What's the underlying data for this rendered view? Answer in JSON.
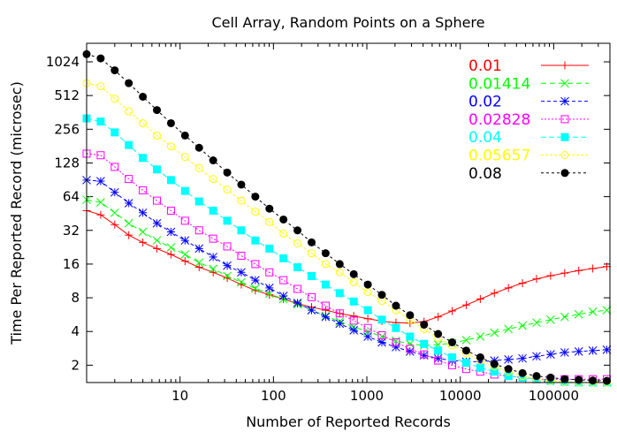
{
  "chart_data": {
    "type": "line",
    "title": "Cell Array, Random Points on a Sphere",
    "xlabel": "Number of Reported Records",
    "ylabel": "Time Per Reported Record (microsec)",
    "xscale": "log10",
    "yscale": "log2",
    "xlim": [
      1,
      400000
    ],
    "ylim": [
      1.4,
      1500
    ],
    "x_ticks": [
      10,
      100,
      1000,
      10000,
      100000
    ],
    "x_tick_labels": [
      "10",
      "100",
      "1000",
      "10000",
      "100000"
    ],
    "y_ticks": [
      2,
      4,
      8,
      16,
      32,
      64,
      128,
      256,
      512,
      1024
    ],
    "y_tick_labels": [
      "2",
      "4",
      "8",
      "16",
      "32",
      "64",
      "128",
      "256",
      "512",
      "1024"
    ],
    "grid": false,
    "legend_position": "top-right",
    "x": [
      1,
      1.414,
      2,
      2.828,
      4,
      5.657,
      8,
      11.31,
      16,
      22.63,
      32,
      45.25,
      64,
      90.51,
      128,
      181,
      256,
      362,
      512,
      724,
      1024,
      1448,
      2048,
      2896,
      4096,
      5793,
      8192,
      11585,
      16384,
      23170,
      32768,
      46341,
      65536,
      92682,
      131072,
      185364,
      262144,
      370728
    ],
    "series": [
      {
        "name": "0.01",
        "color": "#ff0000",
        "marker": "plus",
        "values": [
          48,
          44,
          36,
          29,
          25,
          22,
          19.5,
          17,
          15,
          13.5,
          12,
          10.5,
          9.3,
          8.5,
          7.8,
          7.1,
          6.6,
          6.2,
          5.8,
          5.5,
          5.2,
          4.95,
          4.8,
          4.75,
          4.9,
          5.4,
          6.1,
          6.9,
          7.8,
          8.8,
          9.8,
          10.8,
          11.8,
          12.6,
          13.3,
          14,
          14.6,
          15.2
        ]
      },
      {
        "name": "0.01414",
        "color": "#00ff00",
        "marker": "cross",
        "values": [
          60,
          57,
          46,
          37,
          31,
          26,
          22.5,
          19.5,
          16.5,
          14.5,
          12.5,
          11,
          9.7,
          8.7,
          7.8,
          7,
          6.2,
          5.5,
          4.9,
          4.4,
          4,
          3.6,
          3.3,
          3.1,
          3.0,
          3.05,
          3.15,
          3.35,
          3.6,
          3.9,
          4.2,
          4.5,
          4.8,
          5.1,
          5.4,
          5.7,
          6.0,
          6.2
        ]
      },
      {
        "name": "0.02",
        "color": "#0000ff",
        "marker": "star",
        "values": [
          90,
          88,
          70,
          56,
          46,
          37,
          31,
          26,
          22,
          18.5,
          15.5,
          13.5,
          11.5,
          9.8,
          8.3,
          7.2,
          6.2,
          5.4,
          4.7,
          4.1,
          3.6,
          3.2,
          2.9,
          2.65,
          2.45,
          2.3,
          2.2,
          2.15,
          2.15,
          2.2,
          2.25,
          2.3,
          2.4,
          2.5,
          2.6,
          2.65,
          2.7,
          2.75
        ]
      },
      {
        "name": "0.02828",
        "color": "#ff00ff",
        "marker": "square-open",
        "values": [
          155,
          150,
          118,
          92,
          73,
          59,
          48,
          39,
          32,
          27,
          23,
          19,
          16,
          13.5,
          11.5,
          9.6,
          8.1,
          6.8,
          5.8,
          5,
          4.3,
          3.7,
          3.2,
          2.8,
          2.5,
          2.2,
          2.0,
          1.85,
          1.75,
          1.65,
          1.6,
          1.55,
          1.5,
          1.5,
          1.5,
          1.5,
          1.5,
          1.5
        ]
      },
      {
        "name": "0.04",
        "color": "#00ffff",
        "marker": "square-filled",
        "values": [
          320,
          300,
          240,
          185,
          142,
          112,
          90,
          72,
          58,
          48,
          39,
          32,
          26,
          22,
          18,
          15,
          12.5,
          10.5,
          8.8,
          7.4,
          6.2,
          5.1,
          4.3,
          3.6,
          3.1,
          2.7,
          2.35,
          2.1,
          1.9,
          1.75,
          1.6,
          1.55,
          1.5,
          1.45,
          1.42,
          1.4,
          1.38,
          1.37
        ]
      },
      {
        "name": "0.05657",
        "color": "#ffff00",
        "marker": "circle-open",
        "values": [
          660,
          620,
          480,
          370,
          290,
          225,
          180,
          145,
          115,
          92,
          74,
          59,
          47,
          38,
          30,
          24.5,
          20,
          16,
          13.5,
          11,
          9,
          7.5,
          6.2,
          5.1,
          4.2,
          3.5,
          3.0,
          2.55,
          2.2,
          1.95,
          1.75,
          1.6,
          1.5,
          1.45,
          1.42,
          1.4,
          1.39,
          1.38
        ]
      },
      {
        "name": "0.08",
        "color": "#000000",
        "marker": "circle-filled",
        "values": [
          1200,
          1100,
          860,
          660,
          500,
          380,
          290,
          225,
          175,
          135,
          105,
          82,
          64,
          50,
          40,
          32,
          25,
          20,
          16,
          13,
          10.5,
          8.5,
          6.8,
          5.6,
          4.6,
          3.8,
          3.2,
          2.7,
          2.35,
          2.05,
          1.85,
          1.7,
          1.6,
          1.55,
          1.5,
          1.48,
          1.46,
          1.45
        ]
      }
    ]
  }
}
